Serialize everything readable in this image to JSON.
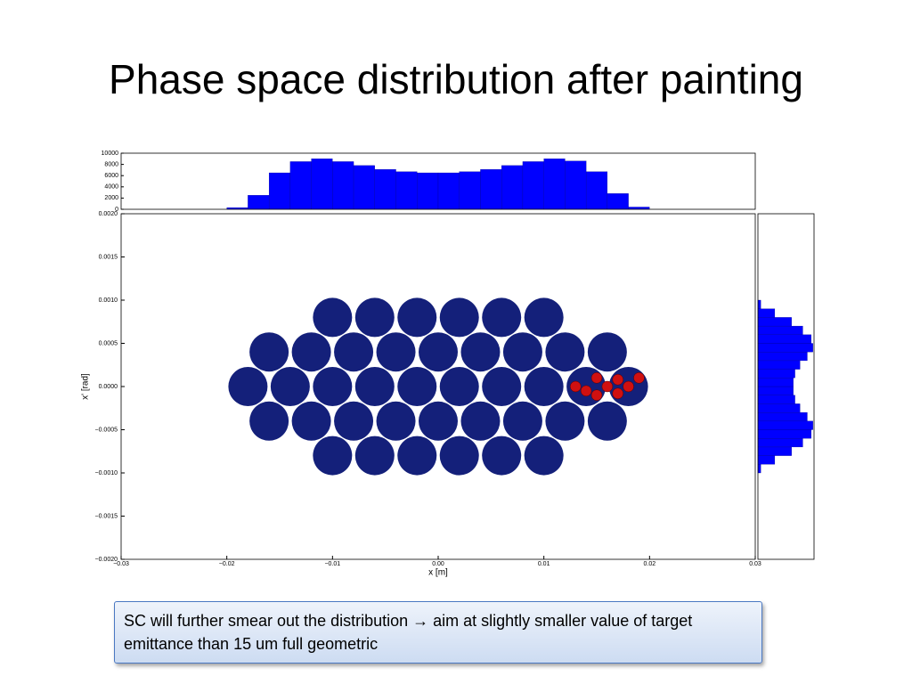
{
  "title": "Phase space distribution after painting",
  "chart_data": [
    {
      "type": "scatter",
      "xlabel": "x [m]",
      "ylabel": "x' [rad]",
      "xlim": [
        -0.03,
        0.03
      ],
      "ylim": [
        -0.002,
        0.002
      ],
      "xticks": [
        {
          "value": -0.03,
          "label": "−0.03"
        },
        {
          "value": -0.02,
          "label": "−0.02"
        },
        {
          "value": -0.01,
          "label": "−0.01"
        },
        {
          "value": 0,
          "label": "0.00"
        },
        0.01,
        0.02,
        0.03
      ],
      "yticks": [
        {
          "value": -0.002,
          "label": "−0.0020"
        },
        {
          "value": -0.0015,
          "label": "−0.0015"
        },
        {
          "value": -0.001,
          "label": "−0.0010"
        },
        {
          "value": -0.0005,
          "label": "−0.0005"
        },
        {
          "value": 0,
          "label": "0.0000"
        },
        0.0005,
        {
          "value": 0.001,
          "label": "0.0010"
        },
        0.0015,
        {
          "value": 0.002,
          "label": "0.0020"
        }
      ],
      "series": [
        {
          "color": "#14207a",
          "x": [
            -0.018,
            -0.014,
            -0.01,
            -0.006,
            -0.002,
            0.002,
            0.006,
            0.01,
            0.014,
            0.018,
            -0.016,
            -0.012,
            -0.008,
            -0.004,
            0,
            0.004,
            0.008,
            0.012,
            0.016,
            -0.016,
            -0.012,
            -0.008,
            -0.004,
            0,
            0.004,
            0.008,
            0.012,
            0.016,
            -0.01,
            -0.006,
            -0.002,
            0.002,
            0.006,
            0.01,
            -0.01,
            -0.006,
            -0.002,
            0.002,
            0.006,
            0.01
          ],
          "y": [
            0,
            0,
            0,
            0,
            0,
            0,
            0,
            0,
            0,
            0,
            0.0004,
            0.0004,
            0.0004,
            0.0004,
            0.0004,
            0.0004,
            0.0004,
            0.0004,
            0.0004,
            -0.0004,
            -0.0004,
            -0.0004,
            -0.0004,
            -0.0004,
            -0.0004,
            -0.0004,
            -0.0004,
            -0.0004,
            0.0008,
            0.0008,
            0.0008,
            0.0008,
            0.0008,
            0.0008,
            -0.0008,
            -0.0008,
            -0.0008,
            -0.0008,
            -0.0008,
            -0.0008
          ]
        },
        {
          "color": "#d01010",
          "x": [
            0.013,
            0.014,
            0.015,
            0.015,
            0.016,
            0.017,
            0.017,
            0.018,
            0.019
          ],
          "y": [
            0,
            -5e-05,
            0.0001,
            -0.0001,
            0,
            8e-05,
            -8e-05,
            0,
            0.0001
          ]
        }
      ]
    },
    {
      "type": "histogram",
      "color": "#0000ff",
      "xlim": [
        -0.03,
        0.03
      ],
      "ylim": [
        0,
        10000
      ],
      "yticks": [
        0,
        2000,
        4000,
        6000,
        8000,
        10000
      ],
      "bins": [
        -0.02,
        -0.018,
        -0.016,
        -0.014,
        -0.012,
        -0.01,
        -0.008,
        -0.006,
        -0.004,
        -0.002,
        0,
        0.002,
        0.004,
        0.006,
        0.008,
        0.01,
        0.012,
        0.014,
        0.016,
        0.018,
        0.02
      ],
      "values": [
        300,
        2500,
        6500,
        8500,
        9000,
        8500,
        7800,
        7100,
        6700,
        6500,
        6500,
        6700,
        7100,
        7800,
        8500,
        9000,
        8600,
        6700,
        2800,
        400
      ]
    },
    {
      "type": "histogram",
      "orientation": "horizontal",
      "color": "#0000ff",
      "xlim": [
        0,
        10000
      ],
      "ylim": [
        -0.002,
        0.002
      ],
      "bins": [
        -0.001,
        -0.0009,
        -0.0008,
        -0.0007,
        -0.0006,
        -0.0005,
        -0.0004,
        -0.0003,
        -0.0002,
        -0.0001,
        0,
        0.0001,
        0.0002,
        0.0003,
        0.0004,
        0.0005,
        0.0006,
        0.0007,
        0.0008,
        0.0009,
        0.001
      ],
      "values": [
        500,
        3000,
        6000,
        8000,
        9500,
        9800,
        8800,
        7500,
        6600,
        6300,
        6300,
        6600,
        7500,
        8800,
        9800,
        9500,
        8000,
        6000,
        3000,
        500
      ]
    }
  ],
  "callout": "SC will further smear out the distribution → aim at slightly smaller value of target emittance than 15 um full geometric"
}
